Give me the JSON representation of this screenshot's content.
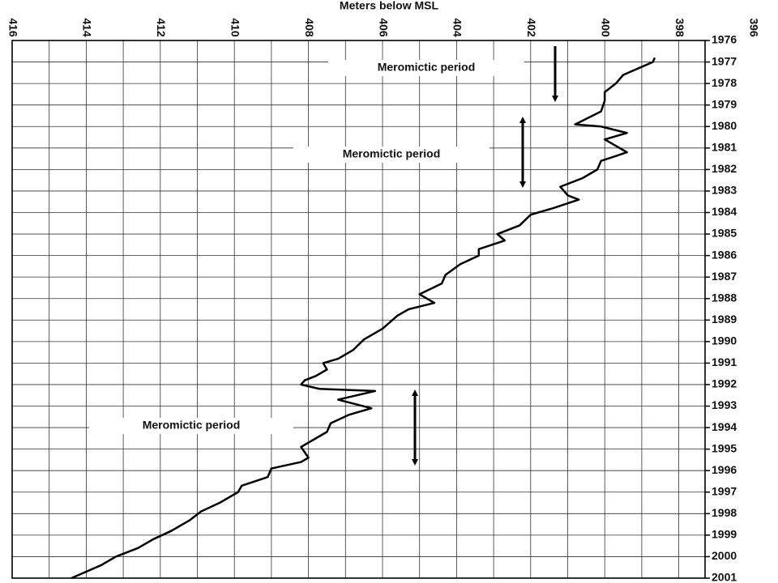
{
  "chart_data": {
    "type": "line",
    "title": "Meters below MSL",
    "xlim": [
      416,
      396
    ],
    "xticks": [
      416,
      414,
      412,
      410,
      408,
      406,
      404,
      402,
      400,
      398,
      396
    ],
    "ylim": [
      1976,
      2001
    ],
    "yticks": [
      1976,
      1977,
      1978,
      1979,
      1980,
      1981,
      1982,
      1983,
      1984,
      1985,
      1986,
      1987,
      1988,
      1989,
      1990,
      1991,
      1992,
      1993,
      1994,
      1995,
      1996,
      1997,
      1998,
      1999,
      2000,
      2001
    ],
    "grid": true,
    "color": "#000000",
    "annotations": [
      "Meromictic period",
      "Meromictic period",
      "Meromictic period"
    ],
    "series": [
      {
        "y": [
          1976.8,
          1977.0,
          1977.6,
          1978.0,
          1978.4,
          1978.8,
          1979.3,
          1979.9,
          1980.0,
          1980.3,
          1980.6,
          1981.2,
          1981.6,
          1982.0,
          1982.4,
          1982.8,
          1983.2,
          1983.4,
          1983.8,
          1984.1,
          1984.6,
          1985.0,
          1985.3,
          1985.7,
          1986.0,
          1986.4,
          1986.9,
          1987.3,
          1987.8,
          1988.2,
          1988.5,
          1988.8,
          1989.4,
          1989.9,
          1990.4,
          1990.8,
          1991.0,
          1991.3,
          1991.6,
          1991.8,
          1992.0,
          1992.2,
          1992.3,
          1992.7,
          1993.1,
          1993.4,
          1993.8,
          1994.2,
          1994.6,
          1994.9,
          1995.4,
          1995.6,
          1995.9,
          1996.3,
          1996.7,
          1997.0,
          1997.5,
          1997.9,
          1998.3,
          1998.8,
          1999.2,
          1999.6,
          2000.0,
          2000.4,
          2000.7,
          2001.0
        ],
        "values": [
          398.65,
          398.7,
          399.5,
          399.7,
          400.0,
          400.0,
          400.1,
          400.8,
          400.1,
          399.4,
          400.0,
          399.4,
          400.1,
          400.2,
          400.6,
          401.2,
          401.0,
          400.7,
          401.4,
          402.0,
          402.3,
          402.9,
          402.7,
          403.4,
          403.4,
          403.9,
          404.3,
          404.4,
          405.0,
          404.6,
          405.3,
          405.6,
          406.0,
          406.5,
          406.8,
          407.2,
          407.6,
          407.5,
          407.8,
          408.1,
          408.2,
          407.7,
          406.2,
          407.2,
          406.3,
          406.9,
          407.4,
          407.5,
          407.9,
          408.2,
          408.0,
          408.2,
          409.0,
          409.1,
          409.8,
          409.9,
          410.4,
          410.9,
          411.2,
          411.7,
          412.2,
          412.6,
          413.2,
          413.6,
          414.0,
          414.4
        ]
      }
    ]
  }
}
